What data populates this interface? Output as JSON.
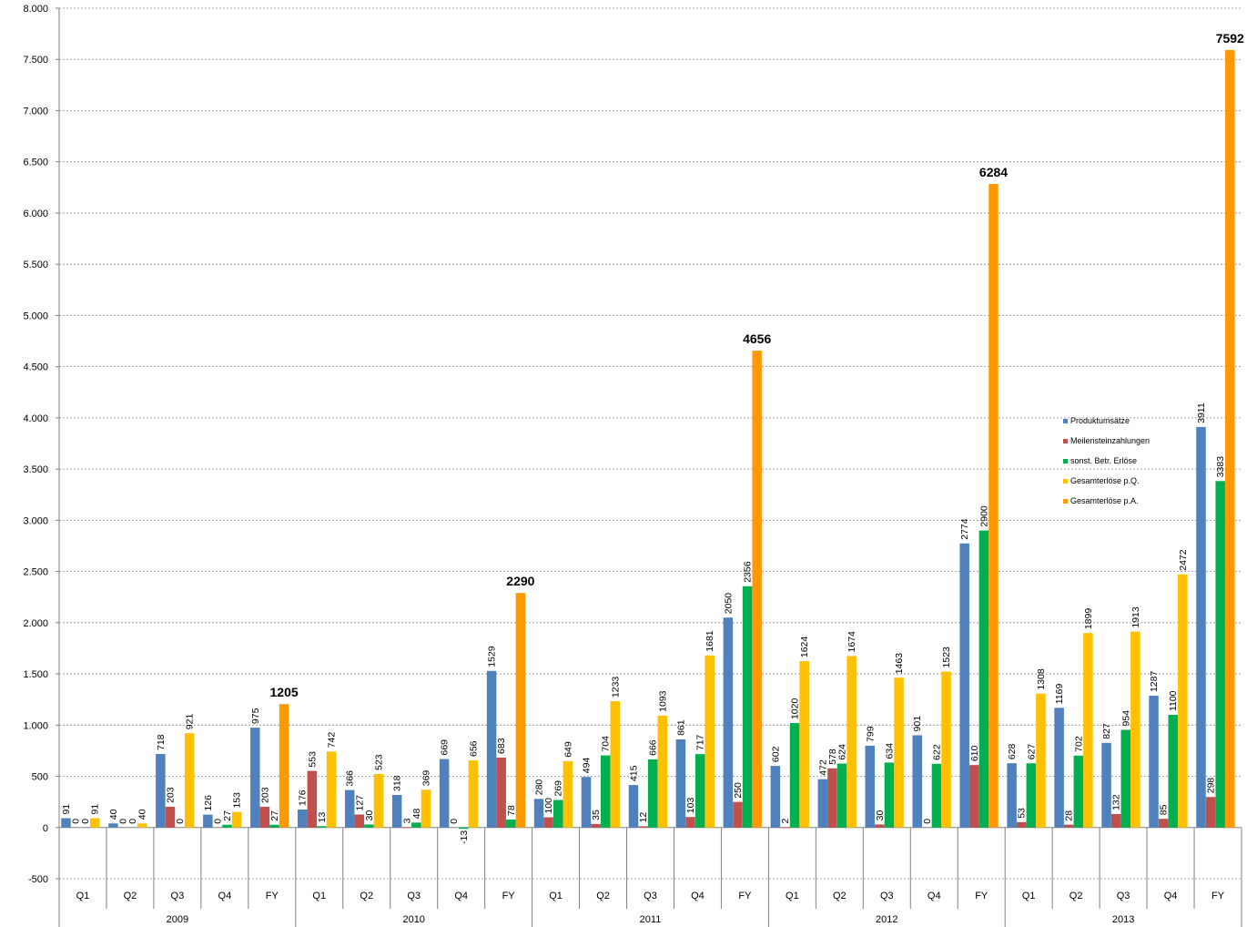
{
  "chart_data": {
    "type": "bar",
    "ylim": [
      -500,
      8000
    ],
    "yticks": [
      -500,
      0,
      500,
      1000,
      1500,
      2000,
      2500,
      3000,
      3500,
      4000,
      4500,
      5000,
      5500,
      6000,
      6500,
      7000,
      7500,
      8000
    ],
    "ytick_labels": [
      "-500",
      "0",
      "500",
      "1.000",
      "1.500",
      "2.000",
      "2.500",
      "3.000",
      "3.500",
      "4.000",
      "4.500",
      "5.000",
      "5.500",
      "6.000",
      "6.500",
      "7.000",
      "7.500",
      "8.000"
    ],
    "grid": true,
    "legend_position": "right",
    "years": [
      "2009",
      "2010",
      "2011",
      "2012",
      "2013"
    ],
    "categories": [
      "Q1",
      "Q2",
      "Q3",
      "Q4",
      "FY",
      "Q1",
      "Q2",
      "Q3",
      "Q4",
      "FY",
      "Q1",
      "Q2",
      "Q3",
      "Q4",
      "FY",
      "Q1",
      "Q2",
      "Q3",
      "Q4",
      "FY",
      "Q1",
      "Q2",
      "Q3",
      "Q4",
      "FY"
    ],
    "series": [
      {
        "name": "Produktumsätze",
        "color": "#4f81bd",
        "values": [
          91,
          40,
          718,
          126,
          975,
          176,
          366,
          318,
          669,
          1529,
          280,
          494,
          415,
          861,
          2050,
          602,
          472,
          799,
          901,
          2774,
          628,
          1169,
          827,
          1287,
          3911
        ]
      },
      {
        "name": "Meilensteinzahlungen",
        "color": "#c0504d",
        "values": [
          0,
          0,
          203,
          0,
          203,
          553,
          127,
          3,
          0,
          683,
          100,
          35,
          12,
          103,
          250,
          2,
          578,
          30,
          0,
          610,
          53,
          28,
          132,
          85,
          298
        ]
      },
      {
        "name": "sonst. Betr. Erlöse",
        "color": "#00b050",
        "values": [
          0,
          0,
          0,
          27,
          27,
          13,
          30,
          48,
          -13,
          78,
          269,
          704,
          666,
          717,
          2356,
          1020,
          624,
          634,
          622,
          2900,
          627,
          702,
          954,
          1100,
          3383
        ]
      },
      {
        "name": "Gesamterlöse   p.Q.",
        "color": "#ffc000",
        "values": [
          91,
          40,
          921,
          153,
          null,
          742,
          523,
          369,
          656,
          null,
          649,
          1233,
          1093,
          1681,
          null,
          1624,
          1674,
          1463,
          1523,
          null,
          1308,
          1899,
          1913,
          2472,
          null
        ]
      },
      {
        "name": "Gesamterlöse   p.A.",
        "color": "#ff9900",
        "values": [
          null,
          null,
          null,
          null,
          1205,
          null,
          null,
          null,
          null,
          2290,
          null,
          null,
          null,
          null,
          4656,
          null,
          null,
          null,
          null,
          6284,
          null,
          null,
          null,
          null,
          7592
        ]
      }
    ]
  }
}
